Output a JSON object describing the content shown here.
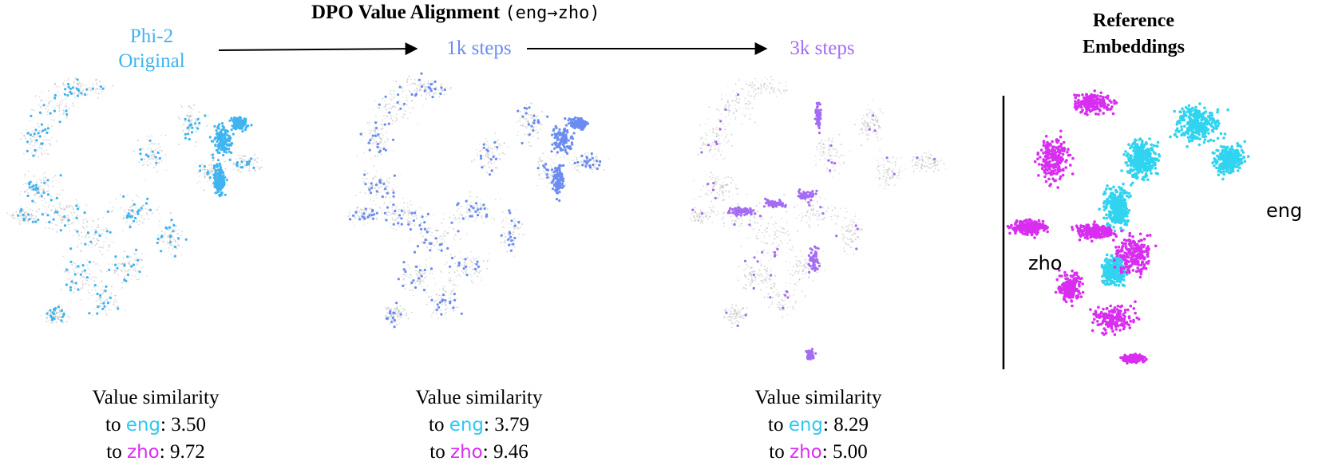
{
  "title": {
    "bold": "DPO Value Alignment",
    "mono": "(eng→zho)"
  },
  "stages": [
    {
      "label_line1": "Phi-2",
      "label_line2": "Original",
      "color": "#3fb4f0"
    },
    {
      "label_line1": "1k steps",
      "label_line2": "",
      "color": "#6b8cf0"
    },
    {
      "label_line1": "3k steps",
      "label_line2": "",
      "color": "#a46cf2"
    }
  ],
  "reference": {
    "title_line1": "Reference",
    "title_line2": "Embeddings",
    "eng_label": "eng",
    "zho_label": "zho",
    "eng_color": "#30d4f0",
    "zho_color": "#d82ef0"
  },
  "similarity": {
    "heading": "Value similarity",
    "to": "to",
    "eng": "eng",
    "zho": "zho"
  },
  "chart_data": {
    "type": "scatter",
    "series": [
      {
        "name": "Phi-2 Original",
        "value_similarity_eng": 3.5,
        "value_similarity_zho": 9.72
      },
      {
        "name": "1k steps",
        "value_similarity_eng": 3.79,
        "value_similarity_zho": 9.46
      },
      {
        "name": "3k steps",
        "value_similarity_eng": 8.29,
        "value_similarity_zho": 5.0
      }
    ],
    "grid": false,
    "values_display": [
      {
        "eng": "3.50",
        "zho": "9.72"
      },
      {
        "eng": "3.79",
        "zho": "9.46"
      },
      {
        "eng": "8.29",
        "zho": "5.00"
      }
    ]
  }
}
